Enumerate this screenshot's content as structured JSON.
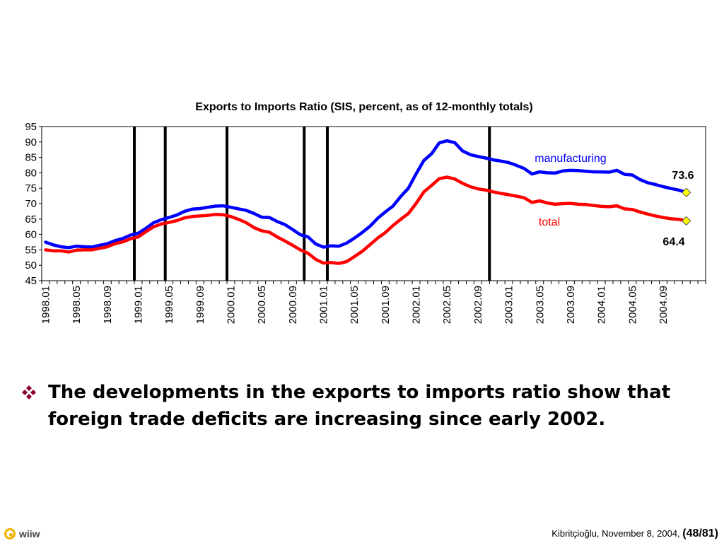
{
  "bullet": {
    "text": "The developments in the exports to imports ratio show that foreign trade deficits are increasing since early 2002."
  },
  "logo": {
    "text": "wiiw"
  },
  "footer": {
    "author_date": "Kibritçioğlu, November 8, 2004,",
    "page_open": "(",
    "page": "48/81)"
  },
  "colors": {
    "manufacturing": "#0000ff",
    "total": "#ff0000",
    "marker": "#ffff00",
    "bullet": "#8b0030"
  },
  "chart_data": {
    "type": "line",
    "title": "Exports to Imports Ratio (SIS, percent, as of 12-monthly totals)",
    "xlabel": "",
    "ylabel": "",
    "ylim": [
      45,
      95
    ],
    "yticks": [
      95,
      90,
      85,
      80,
      75,
      70,
      65,
      60,
      55,
      50,
      45
    ],
    "x_start": "1998.01",
    "x_tick_labels": [
      "1998.01",
      "1998.05",
      "1998.09",
      "1999.01",
      "1999.05",
      "1999.09",
      "2000.01",
      "2000.05",
      "2000.09",
      "2001.01",
      "2001.05",
      "2001.09",
      "2002.01",
      "2002.05",
      "2002.09",
      "2003.01",
      "2003.05",
      "2003.09",
      "2004.01",
      "2004.05",
      "2004.09"
    ],
    "vertical_markers": [
      "1998.12",
      "1999.04",
      "1999.12",
      "2000.10",
      "2001.01",
      "2002.10"
    ],
    "grid": false,
    "series": [
      {
        "name": "manufacturing",
        "color": "#0000ff",
        "end_value": "73.6",
        "values": [
          57.5,
          56.6,
          56.0,
          55.7,
          56.2,
          56.0,
          55.9,
          56.5,
          57.0,
          58.0,
          58.7,
          59.8,
          60.4,
          62.0,
          63.8,
          64.8,
          65.5,
          66.3,
          67.5,
          68.2,
          68.4,
          68.8,
          69.2,
          69.3,
          68.8,
          68.3,
          67.8,
          66.8,
          65.6,
          65.5,
          64.2,
          63.2,
          61.6,
          59.9,
          59.2,
          56.9,
          55.9,
          56.3,
          56.2,
          57.2,
          58.8,
          60.6,
          62.6,
          65.2,
          67.3,
          69.2,
          72.3,
          75.0,
          79.7,
          84.0,
          86.2,
          89.7,
          90.4,
          89.8,
          87.1,
          85.9,
          85.3,
          84.8,
          84.2,
          83.8,
          83.3,
          82.4,
          81.4,
          79.6,
          80.3,
          80.0,
          79.9,
          80.6,
          80.8,
          80.7,
          80.5,
          80.3,
          80.3,
          80.2,
          80.8,
          79.5,
          79.3,
          77.8,
          76.8,
          76.2,
          75.5,
          74.9,
          74.4,
          73.6
        ]
      },
      {
        "name": "total",
        "color": "#ff0000",
        "end_value": "64.4",
        "values": [
          55.0,
          54.7,
          54.7,
          54.3,
          54.9,
          55.0,
          55.0,
          55.5,
          56.0,
          57.0,
          57.6,
          58.6,
          59.2,
          60.9,
          62.5,
          63.4,
          63.9,
          64.5,
          65.4,
          65.8,
          66.0,
          66.2,
          66.5,
          66.4,
          65.8,
          64.9,
          63.8,
          62.2,
          61.2,
          60.7,
          59.2,
          57.9,
          56.5,
          55.0,
          53.9,
          51.9,
          50.7,
          50.9,
          50.6,
          51.2,
          52.8,
          54.5,
          56.6,
          58.8,
          60.6,
          62.9,
          64.9,
          66.8,
          70.1,
          73.8,
          75.9,
          78.1,
          78.6,
          78.0,
          76.6,
          75.5,
          74.8,
          74.4,
          73.8,
          73.3,
          72.9,
          72.4,
          71.9,
          70.4,
          70.9,
          70.2,
          69.8,
          70.0,
          70.1,
          69.8,
          69.7,
          69.4,
          69.1,
          69.0,
          69.3,
          68.3,
          68.1,
          67.3,
          66.6,
          66.0,
          65.5,
          65.1,
          64.9,
          64.4
        ]
      }
    ],
    "series_label_positions": {
      "manufacturing": "above-line, right",
      "total": "below-line, right"
    }
  }
}
